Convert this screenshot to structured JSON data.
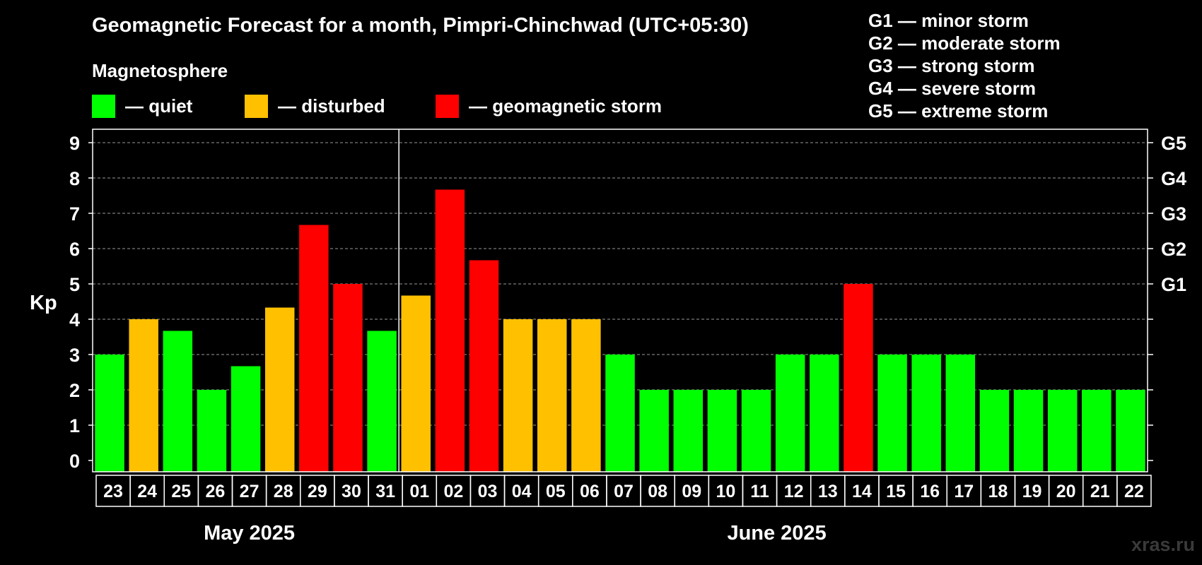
{
  "chart_data": {
    "type": "bar",
    "title": "Geomagnetic Forecast for a month, Pimpri-Chinchwad (UTC+05:30)",
    "ylabel": "Kp",
    "ylim": [
      0,
      9
    ],
    "y_ticks": [
      "0",
      "1",
      "2",
      "3",
      "4",
      "5",
      "6",
      "7",
      "8",
      "9"
    ],
    "g_levels": [
      {
        "label": "G1",
        "kp": 5
      },
      {
        "label": "G2",
        "kp": 6
      },
      {
        "label": "G3",
        "kp": 7
      },
      {
        "label": "G4",
        "kp": 8
      },
      {
        "label": "G5",
        "kp": 9
      }
    ],
    "categories": [
      "23",
      "24",
      "25",
      "26",
      "27",
      "28",
      "29",
      "30",
      "31",
      "01",
      "02",
      "03",
      "04",
      "05",
      "06",
      "07",
      "08",
      "09",
      "10",
      "11",
      "12",
      "13",
      "14",
      "15",
      "16",
      "17",
      "18",
      "19",
      "20",
      "21",
      "22"
    ],
    "values": [
      3,
      4,
      3.67,
      2,
      2.67,
      4.33,
      6.67,
      5,
      3.67,
      4.67,
      7.67,
      5.67,
      4,
      4,
      4,
      3,
      2,
      2,
      2,
      2,
      3,
      3,
      5,
      3,
      3,
      3,
      2,
      2,
      2,
      2,
      2
    ],
    "status": [
      "quiet",
      "disturbed",
      "quiet",
      "quiet",
      "quiet",
      "disturbed",
      "storm",
      "storm",
      "quiet",
      "disturbed",
      "storm",
      "storm",
      "disturbed",
      "disturbed",
      "disturbed",
      "quiet",
      "quiet",
      "quiet",
      "quiet",
      "quiet",
      "quiet",
      "quiet",
      "storm",
      "quiet",
      "quiet",
      "quiet",
      "quiet",
      "quiet",
      "quiet",
      "quiet",
      "quiet"
    ],
    "months": [
      {
        "label": "May 2025",
        "start_index": 0,
        "count": 9
      },
      {
        "label": "June 2025",
        "start_index": 9,
        "count": 22
      }
    ],
    "grid": true
  },
  "legend": {
    "heading": "Magnetosphere",
    "items": [
      {
        "key": "quiet",
        "label": "— quiet",
        "color": "#00ff00"
      },
      {
        "key": "disturbed",
        "label": "— disturbed",
        "color": "#ffc000"
      },
      {
        "key": "storm",
        "label": "— geomagnetic storm",
        "color": "#ff0000"
      }
    ]
  },
  "storm_scale": [
    "G1 — minor storm",
    "G2 — moderate storm",
    "G3 — strong storm",
    "G4 — severe storm",
    "G5 — extreme storm"
  ],
  "watermark": "xras.ru"
}
